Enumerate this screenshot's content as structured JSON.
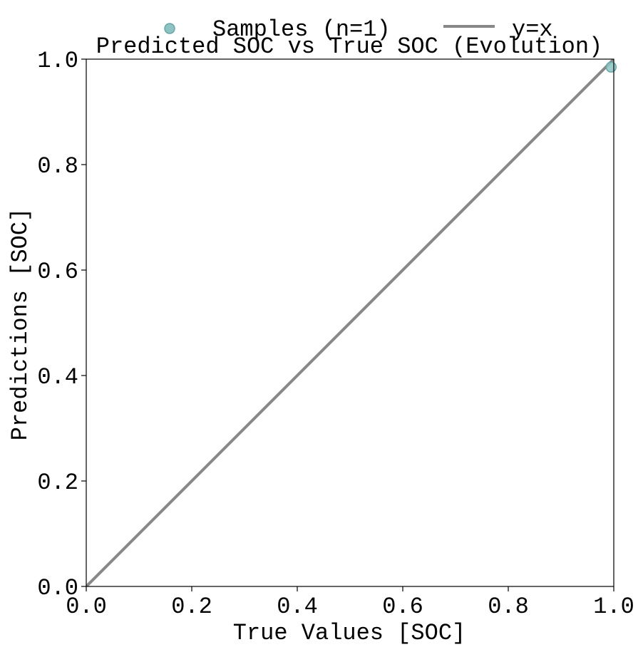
{
  "chart_data": {
    "type": "scatter",
    "title": "Predicted SOC vs True SOC (Evolution)",
    "xlabel": "True Values [SOC]",
    "ylabel": "Predictions [SOC]",
    "xlim": [
      0.0,
      1.0
    ],
    "ylim": [
      0.0,
      1.0
    ],
    "xticks": [
      "0.0",
      "0.2",
      "0.4",
      "0.6",
      "0.8",
      "1.0"
    ],
    "yticks": [
      "0.0",
      "0.2",
      "0.4",
      "0.6",
      "0.8",
      "1.0"
    ],
    "grid": false,
    "legend_position": "top-center",
    "series": [
      {
        "name": "Samples (n=1)",
        "kind": "scatter",
        "color": "#8ec3c3",
        "edge_color": "#6aa6a6",
        "points": [
          {
            "x": 0.995,
            "y": 0.985
          }
        ]
      },
      {
        "name": "y=x",
        "kind": "line",
        "color": "#888888",
        "points": [
          {
            "x": 0.0,
            "y": 0.0
          },
          {
            "x": 1.0,
            "y": 1.0
          }
        ]
      }
    ]
  }
}
